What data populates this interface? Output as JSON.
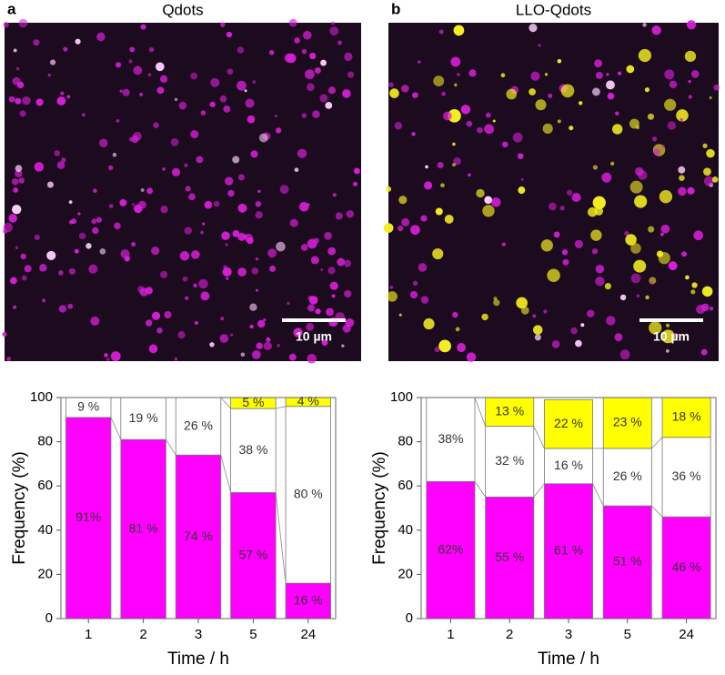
{
  "chart_data": [
    {
      "type": "bar",
      "stacked": true,
      "panel": "a",
      "title": "Qdots",
      "scale_bar": "10 µm",
      "xlabel": "Time / h",
      "ylabel": "Frequency (%)",
      "categories": [
        "1",
        "2",
        "3",
        "5",
        "24"
      ],
      "series": [
        {
          "color": "#ff00ff",
          "values": [
            91,
            81,
            74,
            57,
            16
          ],
          "value_labels": [
            "91%",
            "81 %",
            "74 %",
            "57 %",
            "16 %"
          ]
        },
        {
          "color": "#ffffff",
          "values": [
            9,
            19,
            26,
            38,
            80
          ],
          "value_labels": [
            "9 %",
            "19 %",
            "26 %",
            "38 %",
            "80 %"
          ]
        },
        {
          "color": "#ffff00",
          "values": [
            null,
            null,
            null,
            5,
            4
          ],
          "value_labels": [
            null,
            null,
            null,
            "5 %",
            "4 %"
          ]
        }
      ],
      "ylim": [
        0,
        100
      ],
      "yticks": [
        0,
        20,
        40,
        60,
        80,
        100
      ]
    },
    {
      "type": "bar",
      "stacked": true,
      "panel": "b",
      "title": "LLO-Qdots",
      "scale_bar": "10 µm",
      "xlabel": "Time / h",
      "ylabel": "Frequency (%)",
      "categories": [
        "1",
        "2",
        "3",
        "5",
        "24"
      ],
      "series": [
        {
          "color": "#ff00ff",
          "values": [
            62,
            55,
            61,
            51,
            46
          ],
          "value_labels": [
            "62%",
            "55 %",
            "61 %",
            "51 %",
            "46 %"
          ]
        },
        {
          "color": "#ffffff",
          "values": [
            38,
            32,
            16,
            26,
            36
          ],
          "value_labels": [
            "38%",
            "32 %",
            "16 %",
            "26 %",
            "36 %"
          ]
        },
        {
          "color": "#ffff00",
          "values": [
            null,
            13,
            22,
            23,
            18
          ],
          "value_labels": [
            null,
            "13 %",
            "22 %",
            "23 %",
            "18 %"
          ]
        }
      ],
      "ylim": [
        0,
        100
      ],
      "yticks": [
        0,
        20,
        40,
        60,
        80,
        100
      ]
    }
  ]
}
